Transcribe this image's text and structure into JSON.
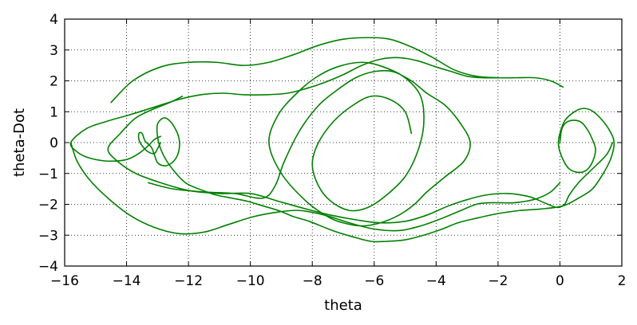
{
  "chart_data": {
    "type": "line",
    "title": "",
    "xlabel": "theta",
    "ylabel": "theta-Dot",
    "xlim": [
      -16,
      2
    ],
    "ylim": [
      -4,
      4
    ],
    "xticks": [
      -16,
      -14,
      -12,
      -10,
      -8,
      -6,
      -4,
      -2,
      0,
      2
    ],
    "yticks": [
      -4,
      -3,
      -2,
      -1,
      0,
      1,
      2,
      3,
      4
    ],
    "xtick_labels": [
      "−16",
      "−14",
      "−12",
      "−10",
      "−8",
      "−6",
      "−4",
      "−2",
      "0",
      "2"
    ],
    "ytick_labels": [
      "−4",
      "−3",
      "−2",
      "−1",
      "0",
      "1",
      "2",
      "3",
      "4"
    ],
    "grid": true,
    "grid_style": "dotted",
    "line_color": "#008000",
    "series": [
      {
        "x": [
          0.0,
          0.05,
          0.15,
          0.3,
          0.5,
          0.7,
          0.9,
          1.05,
          1.15,
          1.1,
          0.95,
          0.75,
          0.5,
          0.3,
          0.15,
          0.0,
          -0.05,
          0.0,
          0.15,
          0.4,
          0.7,
          1.0,
          1.3,
          1.6,
          1.75,
          1.65,
          1.4,
          1.05,
          0.6,
          0.1,
          -0.6,
          -1.3,
          -2.0,
          -2.7,
          -3.3,
          -3.8,
          -4.4,
          -5.0,
          -5.6,
          -6.1,
          -6.7,
          -7.2,
          -7.6,
          -8.1,
          -8.6,
          -9.1,
          -9.6,
          -10.1,
          -10.6,
          -11.1,
          -11.4,
          -11.8,
          -12.1,
          -12.4,
          -12.7,
          -12.9,
          -13.0,
          -13.0,
          -12.8,
          -12.6,
          -12.4,
          -12.3,
          -12.3,
          -12.4,
          -12.6,
          -12.8,
          -13.0,
          -13.1,
          -13.2,
          -13.4,
          -13.5,
          -13.6,
          -13.6,
          -13.5,
          -13.3,
          -13.1,
          -13.0,
          -12.9
        ],
        "y": [
          0.0,
          0.4,
          0.6,
          0.7,
          0.72,
          0.65,
          0.4,
          0.1,
          -0.2,
          -0.5,
          -0.8,
          -0.95,
          -0.95,
          -0.85,
          -0.65,
          -0.3,
          0.0,
          0.3,
          0.7,
          0.95,
          1.1,
          1.05,
          0.8,
          0.4,
          0.0,
          -0.5,
          -1.0,
          -1.5,
          -1.8,
          -2.05,
          -2.15,
          -2.2,
          -2.3,
          -2.45,
          -2.6,
          -2.8,
          -3.0,
          -3.15,
          -3.2,
          -3.2,
          -3.05,
          -2.9,
          -2.75,
          -2.55,
          -2.4,
          -2.2,
          -2.05,
          -1.9,
          -1.8,
          -1.7,
          -1.6,
          -1.45,
          -1.3,
          -1.0,
          -0.6,
          -0.2,
          0.2,
          0.6,
          0.8,
          0.7,
          0.4,
          0.1,
          -0.2,
          -0.5,
          -0.7,
          -0.75,
          -0.65,
          -0.4,
          -0.15,
          0.05,
          0.3,
          0.3,
          0.1,
          -0.1,
          -0.3,
          -0.35,
          -0.2,
          0.0
        ]
      },
      {
        "x": [
          -12.2,
          -12.6,
          -13.1,
          -13.7,
          -14.2,
          -14.6,
          -14.3,
          -13.7,
          -12.9,
          -12.0,
          -11.0,
          -10.0,
          -9.1,
          -8.2,
          -7.4,
          -6.6,
          -5.8,
          -5.0,
          -4.3,
          -3.6,
          -3.0,
          -2.4,
          -1.7,
          -1.0,
          -0.5,
          -0.1,
          0.15,
          0.3,
          0.6,
          1.0,
          1.5,
          1.7
        ],
        "y": [
          1.5,
          1.3,
          1.1,
          0.8,
          0.3,
          -0.2,
          -0.6,
          -1.0,
          -1.3,
          -1.55,
          -1.65,
          -1.65,
          -1.9,
          -2.15,
          -2.35,
          -2.5,
          -2.6,
          -2.55,
          -2.35,
          -2.05,
          -1.85,
          -1.7,
          -1.65,
          -1.75,
          -1.95,
          -2.1,
          -2.0,
          -1.7,
          -1.3,
          -0.9,
          -0.4,
          0.0
        ]
      },
      {
        "x": [
          -13.3,
          -12.5,
          -11.5,
          -10.5,
          -9.6,
          -9.2,
          -8.9,
          -8.4,
          -7.8,
          -7.2,
          -6.6,
          -6.0,
          -5.4,
          -4.8,
          -4.3,
          -3.7,
          -3.2,
          -2.9,
          -3.1,
          -3.7,
          -4.3,
          -4.7,
          -5.2,
          -5.8,
          -6.4,
          -7.0,
          -7.5,
          -8.2,
          -9.0,
          -9.4,
          -9.1,
          -8.5,
          -7.9,
          -7.2,
          -6.4,
          -5.7,
          -5.0,
          -4.5,
          -4.4,
          -4.6,
          -5.0,
          -5.6,
          -6.2,
          -6.8,
          -7.4,
          -7.8,
          -8.0,
          -7.8,
          -7.3,
          -6.7,
          -6.1,
          -5.5,
          -5.0,
          -4.8
        ],
        "y": [
          -1.3,
          -1.5,
          -1.6,
          -1.65,
          -1.8,
          -1.4,
          -0.6,
          0.4,
          1.2,
          1.7,
          2.1,
          2.3,
          2.3,
          2.0,
          1.6,
          1.2,
          0.6,
          0.0,
          -0.6,
          -1.1,
          -1.6,
          -2.0,
          -2.35,
          -2.6,
          -2.7,
          -2.6,
          -2.4,
          -1.9,
          -1.0,
          0.0,
          0.9,
          1.6,
          2.1,
          2.45,
          2.6,
          2.45,
          2.1,
          1.5,
          0.6,
          -0.3,
          -1.1,
          -1.7,
          -2.1,
          -2.2,
          -1.9,
          -1.4,
          -0.7,
          0.0,
          0.7,
          1.2,
          1.5,
          1.4,
          1.0,
          0.3
        ]
      },
      {
        "x": [
          -15.8,
          -15.6,
          -15.2,
          -14.6,
          -13.9,
          -13.1,
          -12.3,
          -11.5,
          -10.7,
          -9.9,
          -9.1,
          -8.4,
          -7.6,
          -6.8,
          -6.0,
          -5.2,
          -4.5,
          -3.8,
          -3.2,
          -2.7,
          -2.3,
          -1.9,
          -1.5,
          -1.1,
          -0.7,
          -0.3,
          0.0
        ],
        "y": [
          0.0,
          -0.6,
          -1.2,
          -1.8,
          -2.35,
          -2.75,
          -2.95,
          -2.9,
          -2.65,
          -2.4,
          -2.25,
          -2.2,
          -2.35,
          -2.6,
          -2.8,
          -2.85,
          -2.7,
          -2.45,
          -2.2,
          -2.0,
          -1.95,
          -1.95,
          -1.95,
          -1.9,
          -1.8,
          -1.6,
          -1.3
        ]
      },
      {
        "x": [
          -2.0,
          -2.5,
          -3.0,
          -3.5,
          -4.0,
          -4.6,
          -5.2,
          -5.8,
          -6.4,
          -7.0,
          -7.6,
          -8.2,
          -8.8,
          -9.5,
          -10.2,
          -10.9,
          -11.6,
          -12.3,
          -13.1,
          -13.9,
          -14.6,
          -15.3,
          -15.8,
          -15.6,
          -15.2,
          -14.6,
          -14.0,
          -13.6,
          -13.3,
          -13.1,
          -12.9
        ],
        "y": [
          2.1,
          2.1,
          2.15,
          2.3,
          2.45,
          2.65,
          2.75,
          2.7,
          2.5,
          2.2,
          1.95,
          1.75,
          1.6,
          1.55,
          1.55,
          1.6,
          1.55,
          1.4,
          1.15,
          0.9,
          0.7,
          0.45,
          0.0,
          -0.3,
          -0.5,
          -0.6,
          -0.55,
          -0.35,
          -0.1,
          0.1,
          0.2
        ]
      },
      {
        "x": [
          -14.5,
          -13.8,
          -12.9,
          -12.0,
          -11.1,
          -10.2,
          -9.4,
          -8.6,
          -7.8,
          -7.0,
          -6.2,
          -5.5,
          -4.8,
          -4.1,
          -3.4,
          -2.7,
          -2.0,
          -1.4,
          -0.8,
          -0.3,
          0.1
        ],
        "y": [
          1.3,
          2.0,
          2.45,
          2.6,
          2.6,
          2.5,
          2.6,
          2.85,
          3.15,
          3.35,
          3.4,
          3.35,
          3.1,
          2.75,
          2.35,
          2.15,
          2.1,
          2.1,
          2.1,
          2.0,
          1.8
        ]
      }
    ]
  }
}
